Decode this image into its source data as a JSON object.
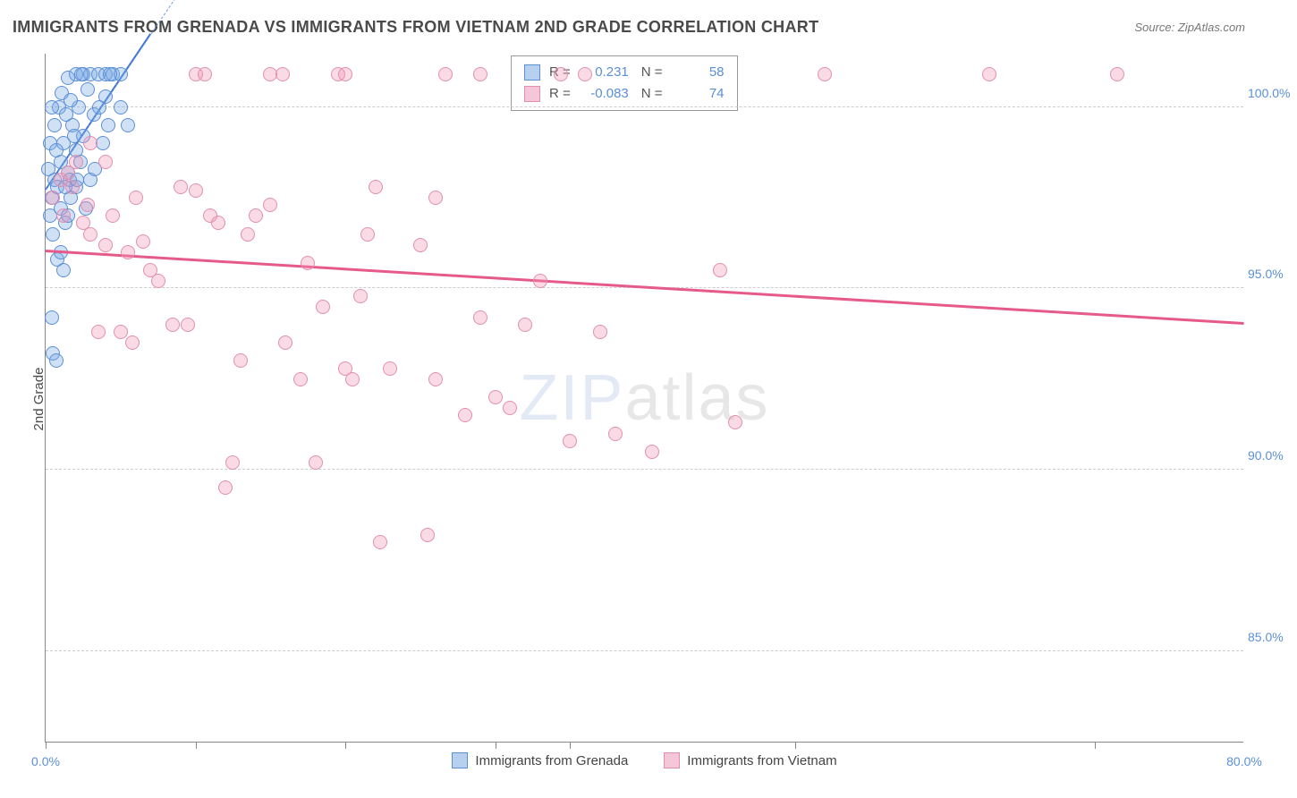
{
  "header": {
    "title": "IMMIGRANTS FROM GRENADA VS IMMIGRANTS FROM VIETNAM 2ND GRADE CORRELATION CHART",
    "source": "Source: ZipAtlas.com"
  },
  "axes": {
    "y_label": "2nd Grade",
    "x_min": 0.0,
    "x_max": 80.0,
    "y_min": 82.5,
    "y_max": 101.5,
    "y_ticks": [
      {
        "value": 100.0,
        "label": "100.0%"
      },
      {
        "value": 95.0,
        "label": "95.0%"
      },
      {
        "value": 90.0,
        "label": "90.0%"
      },
      {
        "value": 85.0,
        "label": "85.0%"
      }
    ],
    "x_ticks": [
      0.0,
      10.0,
      20.0,
      30.0,
      35.0,
      50.0,
      70.0
    ],
    "x_tick_labels": [
      {
        "value": 0.0,
        "label": "0.0%"
      },
      {
        "value": 80.0,
        "label": "80.0%"
      }
    ]
  },
  "watermark": {
    "zip": "ZIP",
    "atlas": "atlas"
  },
  "series": [
    {
      "id": "grenada",
      "label": "Immigrants from Grenada",
      "color_fill": "rgba(120, 170, 230, 0.35)",
      "color_stroke": "#5b8fd6",
      "swatch_fill": "#b8d0ef",
      "swatch_border": "#5b8fd6",
      "R": "0.231",
      "N": "58",
      "trend": {
        "x1": 0.0,
        "y1": 97.7,
        "x2": 7.0,
        "y2": 102.0,
        "color": "#3a72d4",
        "width": 2
      },
      "trend_dash": {
        "x1": 0.0,
        "y1": 97.7,
        "x2": 9.0,
        "y2": 103.2,
        "color": "#6c9ae0",
        "width": 1
      },
      "points": [
        {
          "x": 0.3,
          "y": 97.0
        },
        {
          "x": 0.4,
          "y": 97.5
        },
        {
          "x": 0.5,
          "y": 96.5
        },
        {
          "x": 0.6,
          "y": 98.0
        },
        {
          "x": 0.8,
          "y": 97.8
        },
        {
          "x": 1.0,
          "y": 97.2
        },
        {
          "x": 1.0,
          "y": 98.5
        },
        {
          "x": 1.2,
          "y": 99.0
        },
        {
          "x": 1.3,
          "y": 96.8
        },
        {
          "x": 1.5,
          "y": 98.2
        },
        {
          "x": 1.5,
          "y": 100.8
        },
        {
          "x": 1.7,
          "y": 97.5
        },
        {
          "x": 1.8,
          "y": 99.5
        },
        {
          "x": 2.0,
          "y": 98.8
        },
        {
          "x": 2.0,
          "y": 100.9
        },
        {
          "x": 2.2,
          "y": 100.0
        },
        {
          "x": 2.5,
          "y": 99.2
        },
        {
          "x": 2.5,
          "y": 100.9
        },
        {
          "x": 2.8,
          "y": 100.5
        },
        {
          "x": 3.0,
          "y": 98.0
        },
        {
          "x": 3.0,
          "y": 100.9
        },
        {
          "x": 3.2,
          "y": 99.8
        },
        {
          "x": 3.5,
          "y": 100.9
        },
        {
          "x": 3.8,
          "y": 99.0
        },
        {
          "x": 4.0,
          "y": 100.3
        },
        {
          "x": 4.0,
          "y": 100.9
        },
        {
          "x": 4.2,
          "y": 99.5
        },
        {
          "x": 4.5,
          "y": 100.9
        },
        {
          "x": 5.0,
          "y": 100.0
        },
        {
          "x": 5.0,
          "y": 100.9
        },
        {
          "x": 5.5,
          "y": 99.5
        },
        {
          "x": 0.5,
          "y": 93.2
        },
        {
          "x": 0.7,
          "y": 93.0
        },
        {
          "x": 0.8,
          "y": 95.8
        },
        {
          "x": 0.4,
          "y": 94.2
        },
        {
          "x": 1.0,
          "y": 96.0
        },
        {
          "x": 1.2,
          "y": 95.5
        },
        {
          "x": 1.5,
          "y": 97.0
        },
        {
          "x": 2.0,
          "y": 97.8
        },
        {
          "x": 2.3,
          "y": 98.5
        },
        {
          "x": 2.7,
          "y": 97.2
        },
        {
          "x": 3.3,
          "y": 98.3
        },
        {
          "x": 0.3,
          "y": 99.0
        },
        {
          "x": 0.6,
          "y": 99.5
        },
        {
          "x": 0.9,
          "y": 100.0
        },
        {
          "x": 1.1,
          "y": 100.4
        },
        {
          "x": 1.4,
          "y": 99.8
        },
        {
          "x": 1.6,
          "y": 98.0
        },
        {
          "x": 1.9,
          "y": 99.2
        },
        {
          "x": 2.1,
          "y": 98.0
        },
        {
          "x": 2.4,
          "y": 100.9
        },
        {
          "x": 1.3,
          "y": 97.8
        },
        {
          "x": 1.7,
          "y": 100.2
        },
        {
          "x": 0.2,
          "y": 98.3
        },
        {
          "x": 0.4,
          "y": 100.0
        },
        {
          "x": 0.7,
          "y": 98.8
        },
        {
          "x": 3.6,
          "y": 100.0
        },
        {
          "x": 4.3,
          "y": 100.9
        }
      ]
    },
    {
      "id": "vietnam",
      "label": "Immigrants from Vietnam",
      "color_fill": "rgba(240, 150, 180, 0.35)",
      "color_stroke": "#e08fb0",
      "swatch_fill": "#f5c6d8",
      "swatch_border": "#e08fb0",
      "R": "-0.083",
      "N": "74",
      "trend": {
        "x1": 0.0,
        "y1": 96.0,
        "x2": 80.0,
        "y2": 94.0,
        "color": "#e65a8a",
        "width": 2.5
      },
      "points": [
        {
          "x": 0.5,
          "y": 97.5
        },
        {
          "x": 1.0,
          "y": 98.0
        },
        {
          "x": 1.2,
          "y": 97.0
        },
        {
          "x": 1.5,
          "y": 98.2
        },
        {
          "x": 1.8,
          "y": 97.8
        },
        {
          "x": 2.0,
          "y": 98.5
        },
        {
          "x": 2.5,
          "y": 96.8
        },
        {
          "x": 2.8,
          "y": 97.3
        },
        {
          "x": 3.0,
          "y": 99.0
        },
        {
          "x": 3.0,
          "y": 96.5
        },
        {
          "x": 3.5,
          "y": 93.8
        },
        {
          "x": 4.0,
          "y": 98.5
        },
        {
          "x": 4.0,
          "y": 96.2
        },
        {
          "x": 4.5,
          "y": 97.0
        },
        {
          "x": 5.0,
          "y": 93.8
        },
        {
          "x": 5.8,
          "y": 93.5
        },
        {
          "x": 5.5,
          "y": 96.0
        },
        {
          "x": 6.0,
          "y": 97.5
        },
        {
          "x": 6.5,
          "y": 96.3
        },
        {
          "x": 7.0,
          "y": 95.5
        },
        {
          "x": 7.5,
          "y": 95.2
        },
        {
          "x": 8.5,
          "y": 94.0
        },
        {
          "x": 9.0,
          "y": 97.8
        },
        {
          "x": 9.5,
          "y": 94.0
        },
        {
          "x": 10.0,
          "y": 97.7
        },
        {
          "x": 10.0,
          "y": 100.9
        },
        {
          "x": 10.6,
          "y": 100.9
        },
        {
          "x": 11.0,
          "y": 97.0
        },
        {
          "x": 11.5,
          "y": 96.8
        },
        {
          "x": 12.0,
          "y": 89.5
        },
        {
          "x": 12.5,
          "y": 90.2
        },
        {
          "x": 13.0,
          "y": 93.0
        },
        {
          "x": 13.5,
          "y": 96.5
        },
        {
          "x": 14.0,
          "y": 97.0
        },
        {
          "x": 15.0,
          "y": 97.3
        },
        {
          "x": 15.0,
          "y": 100.9
        },
        {
          "x": 15.8,
          "y": 100.9
        },
        {
          "x": 16.0,
          "y": 93.5
        },
        {
          "x": 17.0,
          "y": 92.5
        },
        {
          "x": 17.5,
          "y": 95.7
        },
        {
          "x": 18.0,
          "y": 90.2
        },
        {
          "x": 18.5,
          "y": 94.5
        },
        {
          "x": 19.5,
          "y": 100.9
        },
        {
          "x": 20.0,
          "y": 100.9
        },
        {
          "x": 20.0,
          "y": 92.8
        },
        {
          "x": 20.5,
          "y": 92.5
        },
        {
          "x": 21.0,
          "y": 94.8
        },
        {
          "x": 21.5,
          "y": 96.5
        },
        {
          "x": 22.0,
          "y": 97.8
        },
        {
          "x": 22.3,
          "y": 88.0
        },
        {
          "x": 23.0,
          "y": 92.8
        },
        {
          "x": 25.0,
          "y": 96.2
        },
        {
          "x": 25.5,
          "y": 88.2
        },
        {
          "x": 26.0,
          "y": 97.5
        },
        {
          "x": 26.0,
          "y": 92.5
        },
        {
          "x": 26.7,
          "y": 100.9
        },
        {
          "x": 28.0,
          "y": 91.5
        },
        {
          "x": 29.0,
          "y": 100.9
        },
        {
          "x": 29.0,
          "y": 94.2
        },
        {
          "x": 30.0,
          "y": 92.0
        },
        {
          "x": 31.0,
          "y": 91.7
        },
        {
          "x": 32.0,
          "y": 94.0
        },
        {
          "x": 33.0,
          "y": 95.2
        },
        {
          "x": 34.4,
          "y": 100.9
        },
        {
          "x": 35.0,
          "y": 90.8
        },
        {
          "x": 36.0,
          "y": 100.9
        },
        {
          "x": 37.0,
          "y": 93.8
        },
        {
          "x": 38.0,
          "y": 91.0
        },
        {
          "x": 40.5,
          "y": 90.5
        },
        {
          "x": 45.0,
          "y": 95.5
        },
        {
          "x": 46.0,
          "y": 91.3
        },
        {
          "x": 52.0,
          "y": 100.9
        },
        {
          "x": 63.0,
          "y": 100.9
        },
        {
          "x": 71.5,
          "y": 100.9
        }
      ]
    }
  ],
  "legend_top_labels": {
    "R": "R =",
    "N": "N ="
  },
  "legend_bottom": {
    "series1": "Immigrants from Grenada",
    "series2": "Immigrants from Vietnam"
  }
}
